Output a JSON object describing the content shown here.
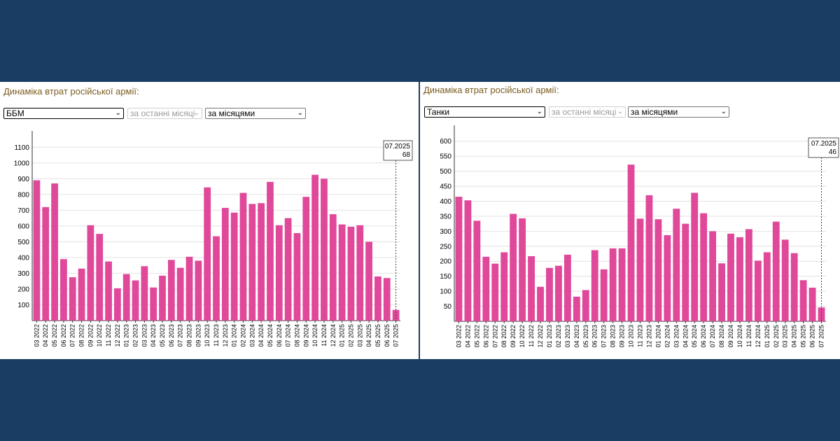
{
  "page": {
    "background": "#1a3d63",
    "bar_color": "#e0489a",
    "title_color": "#7a5c1e"
  },
  "panels": [
    {
      "title": "Динаміка втрат російської армії:",
      "selects": {
        "category": "ББМ",
        "period": "за останні місяці",
        "grouping": "за місяцями"
      },
      "tooltip": {
        "label": "07.2025",
        "value": "68"
      }
    },
    {
      "title": "Динаміка втрат російської армії:",
      "selects": {
        "category": "Танки",
        "period": "за останні місяці",
        "grouping": "за місяцями"
      },
      "tooltip": {
        "label": "07.2025",
        "value": "46"
      }
    }
  ],
  "chart_data": [
    {
      "type": "bar",
      "series_name": "ББМ",
      "categories": [
        "03 2022",
        "04 2022",
        "05 2022",
        "06 2022",
        "07 2022",
        "08 2022",
        "09 2022",
        "10 2022",
        "11 2022",
        "12 2022",
        "01 2023",
        "02 2023",
        "03 2023",
        "04 2023",
        "05 2023",
        "06 2023",
        "07 2023",
        "08 2023",
        "09 2023",
        "10 2023",
        "11 2023",
        "12 2023",
        "01 2024",
        "02 2024",
        "03 2024",
        "04 2024",
        "05 2024",
        "06 2024",
        "07 2024",
        "08 2024",
        "09 2024",
        "10 2024",
        "11 2024",
        "12 2024",
        "01 2025",
        "02 2025",
        "03 2025",
        "04 2025",
        "05 2025",
        "06 2025",
        "07 2025"
      ],
      "values": [
        890,
        720,
        870,
        390,
        275,
        330,
        605,
        550,
        375,
        205,
        295,
        255,
        345,
        210,
        285,
        385,
        335,
        405,
        380,
        845,
        535,
        715,
        685,
        810,
        740,
        745,
        880,
        605,
        650,
        555,
        785,
        925,
        900,
        675,
        610,
        595,
        605,
        500,
        280,
        270,
        68
      ],
      "yticks": [
        100,
        200,
        300,
        400,
        500,
        600,
        700,
        800,
        900,
        1000,
        1100
      ],
      "ylim": [
        0,
        1150
      ],
      "highlight": {
        "category": "07.2025",
        "value": 68
      }
    },
    {
      "type": "bar",
      "series_name": "Танки",
      "categories": [
        "03 2022",
        "04 2022",
        "05 2022",
        "06 2022",
        "07 2022",
        "08 2022",
        "09 2022",
        "10 2022",
        "11 2022",
        "12 2022",
        "01 2023",
        "02 2023",
        "03 2023",
        "04 2023",
        "05 2023",
        "06 2023",
        "07 2023",
        "08 2023",
        "09 2023",
        "10 2023",
        "11 2023",
        "12 2023",
        "01 2024",
        "02 2024",
        "03 2024",
        "04 2024",
        "05 2024",
        "06 2024",
        "07 2024",
        "08 2024",
        "09 2024",
        "10 2024",
        "11 2024",
        "12 2024",
        "01 2025",
        "02 2025",
        "03 2025",
        "04 2025",
        "05 2025",
        "06 2025",
        "07 2025"
      ],
      "values": [
        415,
        403,
        335,
        215,
        192,
        230,
        358,
        343,
        217,
        115,
        178,
        185,
        222,
        82,
        104,
        237,
        173,
        243,
        243,
        522,
        342,
        420,
        340,
        287,
        375,
        325,
        428,
        360,
        300,
        193,
        292,
        280,
        307,
        202,
        230,
        332,
        272,
        227,
        137,
        112,
        46
      ],
      "yticks": [
        50,
        100,
        150,
        200,
        250,
        300,
        350,
        400,
        450,
        500,
        550,
        600
      ],
      "ylim": [
        0,
        625
      ],
      "highlight": {
        "category": "07.2025",
        "value": 46
      }
    }
  ]
}
